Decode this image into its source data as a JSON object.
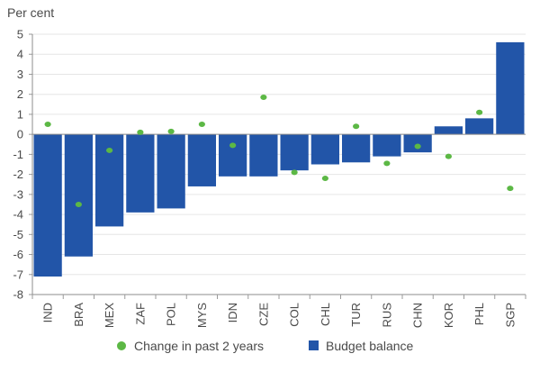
{
  "chart_data": {
    "type": "bar",
    "unit_label": "Per cent",
    "categories": [
      "IND",
      "BRA",
      "MEX",
      "ZAF",
      "POL",
      "MYS",
      "IDN",
      "CZE",
      "COL",
      "CHL",
      "TUR",
      "RUS",
      "CHN",
      "KOR",
      "PHL",
      "SGP"
    ],
    "series": [
      {
        "name": "Budget balance",
        "type": "bar",
        "color": "#2255a8",
        "values": [
          -7.1,
          -6.1,
          -4.6,
          -3.9,
          -3.7,
          -2.6,
          -2.1,
          -2.1,
          -1.8,
          -1.5,
          -1.4,
          -1.1,
          -0.9,
          0.4,
          0.8,
          4.6
        ]
      },
      {
        "name": "Change in past 2 years",
        "type": "scatter",
        "color": "#5cb845",
        "values": [
          0.5,
          -3.5,
          -0.8,
          0.1,
          0.15,
          0.5,
          -0.55,
          1.85,
          -1.9,
          -2.2,
          0.4,
          -1.45,
          -0.6,
          -1.1,
          1.1,
          -2.7
        ]
      }
    ],
    "yticks": [
      5,
      4,
      3,
      2,
      1,
      0,
      -1,
      -2,
      -3,
      -4,
      -5,
      -6,
      -7,
      -8
    ],
    "ylim": [
      -8,
      5
    ],
    "grid": true,
    "legend_position": "bottom",
    "legend": [
      {
        "label": "Change in past 2 years",
        "marker": "circle",
        "color": "#5cb845"
      },
      {
        "label": "Budget balance",
        "marker": "square",
        "color": "#2255a8"
      }
    ]
  }
}
